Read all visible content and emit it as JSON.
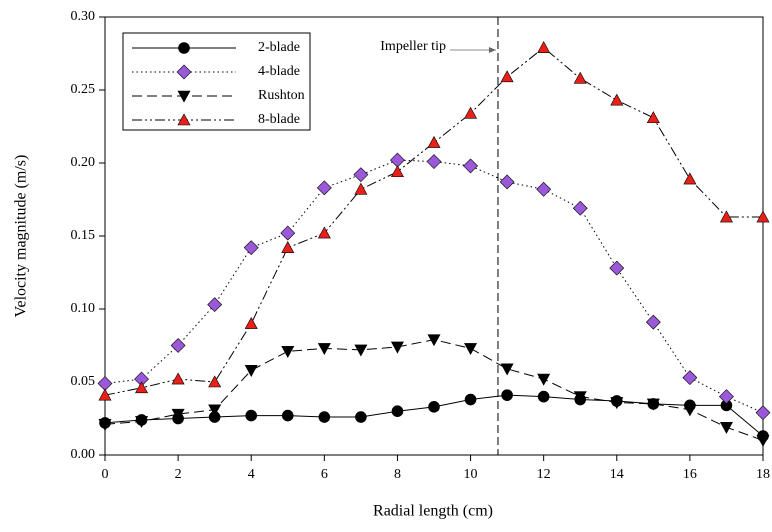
{
  "chart_data": {
    "type": "line",
    "xlabel": "Radial length (cm)",
    "ylabel": "Velocity magnitude (m/s)",
    "x": [
      0,
      1,
      2,
      3,
      4,
      5,
      6,
      7,
      8,
      9,
      10,
      11,
      12,
      13,
      14,
      15,
      16,
      17,
      18
    ],
    "xlim": [
      0,
      18
    ],
    "xticks": [
      0,
      2,
      4,
      6,
      8,
      10,
      12,
      14,
      16,
      18
    ],
    "ylim": [
      0,
      0.3
    ],
    "yticks": [
      {
        "value": 0,
        "label": "0.00"
      },
      {
        "value": 0.05,
        "label": "0.05"
      },
      {
        "value": 0.1,
        "label": "0.10"
      },
      {
        "value": 0.15,
        "label": "0.15"
      },
      {
        "value": 0.2,
        "label": "0.20"
      },
      {
        "value": 0.25,
        "label": "0.25"
      },
      {
        "value": 0.3,
        "label": "0.30"
      }
    ],
    "legend": "upper left",
    "annotations": [
      {
        "text": "Impeller tip",
        "x": 10.75
      }
    ],
    "series": [
      {
        "name": "2-blade",
        "color": "#000000",
        "marker": "circle",
        "linestyle": "solid",
        "values": [
          0.022,
          0.024,
          0.025,
          0.026,
          0.027,
          0.027,
          0.026,
          0.026,
          0.03,
          0.033,
          0.038,
          0.041,
          0.04,
          0.038,
          0.037,
          0.035,
          0.034,
          0.034,
          0.013
        ]
      },
      {
        "name": "4-blade",
        "color": "#9b59d9",
        "marker": "diamond",
        "linestyle": "dotted",
        "values": [
          0.049,
          0.052,
          0.075,
          0.103,
          0.142,
          0.152,
          0.183,
          0.192,
          0.202,
          0.201,
          0.198,
          0.187,
          0.182,
          0.169,
          0.128,
          0.091,
          0.053,
          0.04,
          0.029
        ]
      },
      {
        "name": "Rushton",
        "color": "#000000",
        "marker": "triangle-down",
        "linestyle": "dashed",
        "values": [
          0.021,
          0.023,
          0.028,
          0.031,
          0.058,
          0.071,
          0.073,
          0.072,
          0.074,
          0.079,
          0.073,
          0.059,
          0.052,
          0.04,
          0.036,
          0.035,
          0.031,
          0.019,
          0.01
        ]
      },
      {
        "name": "8-blade",
        "color": "#e8201a",
        "marker": "triangle-up",
        "linestyle": "dashdotdot",
        "values": [
          0.041,
          0.046,
          0.052,
          0.05,
          0.09,
          0.142,
          0.152,
          0.182,
          0.194,
          0.214,
          0.234,
          0.259,
          0.279,
          0.258,
          0.243,
          0.231,
          0.189,
          0.163,
          0.163
        ]
      }
    ]
  }
}
